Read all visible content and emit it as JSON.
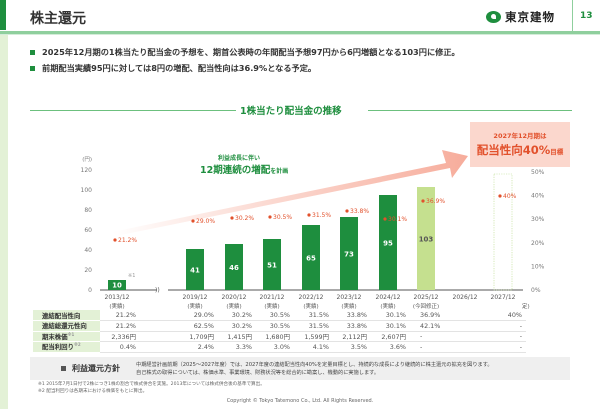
{
  "header": {
    "title": "株主還元",
    "company": "東京建物",
    "page_number": "13"
  },
  "bullets": [
    "2025年12月期の1株当たり配当金の予想を、期首公表時の年間配当予想97円から6円増額となる103円に修正。",
    "前期配当実績95円に対しては8円の増配、配当性向は36.9%となる予定。"
  ],
  "section_title": "1株当たり配当金の推移",
  "annotation": {
    "line1": "利益成長に伴い",
    "line2_main": "12期連続の増配",
    "line2_suffix": "を計画",
    "connector": "の"
  },
  "target_box": {
    "line1": "2027年12月期は",
    "line2_main": "配当性向40%",
    "line2_suffix": "目標"
  },
  "colors": {
    "brand_green": "#1e8e3e",
    "forecast_green": "#c5e08f",
    "payout_red": "#e2512c",
    "arrow_salmon": "#f6a896"
  },
  "chart_data": {
    "type": "bar",
    "title": "1株当たり配当金の推移",
    "ylabel": "(円)",
    "ylim": [
      0,
      120
    ],
    "yticks": [
      0,
      20,
      40,
      60,
      80,
      100,
      120
    ],
    "y2lim": [
      0,
      50
    ],
    "y2ticks": [
      "0%",
      "10%",
      "20%",
      "30%",
      "40%",
      "50%"
    ],
    "break_marker": "))",
    "categories": [
      "2013/12",
      "2019/12",
      "2020/12",
      "2021/12",
      "2022/12",
      "2023/12",
      "2024/12",
      "2025/12",
      "2026/12",
      "2027/12"
    ],
    "category_notes": [
      "(実績)",
      "(実績)",
      "(実績)",
      "(実績)",
      "(実績)",
      "(実績)",
      "(実績)",
      "(今回修正)",
      "",
      ""
    ],
    "last_note_fragment": "定)",
    "note_2013": "※1",
    "series": [
      {
        "name": "1株当たり配当金",
        "unit": "円",
        "values": [
          10,
          41,
          46,
          51,
          65,
          73,
          95,
          103,
          null,
          null
        ]
      },
      {
        "name": "連結配当性向",
        "unit": "%",
        "values": [
          21.2,
          29.0,
          30.2,
          30.5,
          31.5,
          33.8,
          30.1,
          36.9,
          null,
          40
        ],
        "labels": [
          "21.2%",
          "29.0%",
          "30.2%",
          "30.5%",
          "31.5%",
          "33.8%",
          "30.1%",
          "36.9%",
          "",
          "40%"
        ]
      }
    ]
  },
  "table": {
    "rows": [
      {
        "label": "連結配当性向",
        "values": [
          "21.2%",
          "29.0%",
          "30.2%",
          "30.5%",
          "31.5%",
          "33.8%",
          "30.1%",
          "36.9%",
          "",
          "40%"
        ]
      },
      {
        "label": "連結総還元性向",
        "values": [
          "21.2%",
          "62.5%",
          "30.2%",
          "30.5%",
          "31.5%",
          "33.8%",
          "30.1%",
          "42.1%",
          "",
          "-"
        ]
      },
      {
        "label": "期末株価",
        "sup": "※1",
        "values": [
          "2,336円",
          "1,709円",
          "1,415円",
          "1,680円",
          "1,599円",
          "2,112円",
          "2,607円",
          "-",
          "",
          "-"
        ]
      },
      {
        "label": "配当利回り",
        "sup": "※2",
        "values": [
          "0.4%",
          "2.4%",
          "3.3%",
          "3.0%",
          "4.1%",
          "3.5%",
          "3.6%",
          "-",
          "",
          "-"
        ]
      }
    ]
  },
  "policy": {
    "label": "利益還元方針",
    "line1": "中期経営計画前期（2025〜2027年度）では、2027年度の連結配当性向40%を定量目標とし、持続的な成長により継続的に株主還元の拡充を図ります。",
    "line2": "自己株式の取得については、株価水準、事業環境、財務状況等を総合的に勘案し、機動的に実施します。"
  },
  "footnotes": [
    "※1 2015年7月1日付で2株につき1株の割合で株式併合を実施。2013年については株式併合後の基準で算出。",
    "※2 配当利回りは各期末における株価をもとに算出。"
  ],
  "copyright": "Copyright © Tokyo Tatemono Co., Ltd. All Rights Reserved."
}
